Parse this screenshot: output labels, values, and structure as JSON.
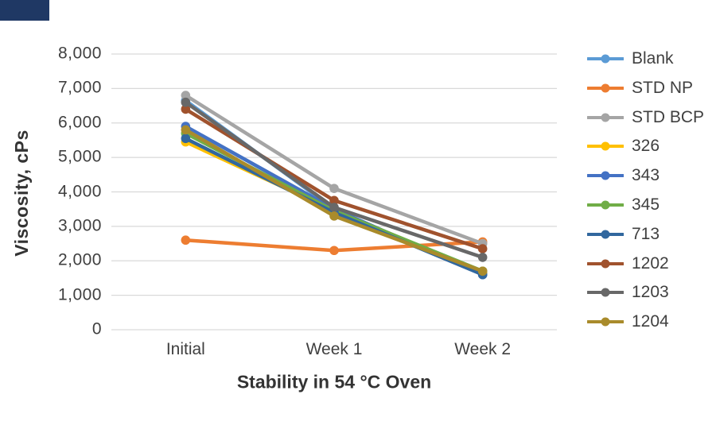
{
  "figure": {
    "background": "#FFFFFF",
    "corner_decoration_color": "#1F3864"
  },
  "chart_data": {
    "type": "line",
    "title": "",
    "xlabel": "Stability in 54 °C Oven",
    "ylabel": "Viscosity, cPs",
    "categories": [
      "Initial",
      "Week 1",
      "Week 2"
    ],
    "ylim": [
      0,
      8000
    ],
    "ytick_step": 1000,
    "ytick_labels": [
      "0",
      "1,000",
      "2,000",
      "3,000",
      "4,000",
      "5,000",
      "6,000",
      "7,000",
      "8,000"
    ],
    "grid": true,
    "gridline_color": "#D9D9D9",
    "axis_text_color": "#404040",
    "legend_position": "right",
    "marker": "circle",
    "series": [
      {
        "name": "Blank",
        "color": "#5B9BD5",
        "values": [
          6650,
          3500,
          1600
        ]
      },
      {
        "name": "STD NP",
        "color": "#ED7D31",
        "values": [
          2600,
          2300,
          2550
        ]
      },
      {
        "name": "STD BCP",
        "color": "#A5A5A5",
        "values": [
          6800,
          4100,
          2500
        ]
      },
      {
        "name": "326",
        "color": "#FFC000",
        "values": [
          5450,
          3450,
          1650
        ]
      },
      {
        "name": "343",
        "color": "#4472C4",
        "values": [
          5900,
          3500,
          1600
        ]
      },
      {
        "name": "345",
        "color": "#70AD47",
        "values": [
          5700,
          3450,
          1700
        ]
      },
      {
        "name": "713",
        "color": "#31679E",
        "values": [
          5550,
          3400,
          1600
        ]
      },
      {
        "name": "1202",
        "color": "#A0522D",
        "values": [
          6400,
          3750,
          2350
        ]
      },
      {
        "name": "1203",
        "color": "#686868",
        "values": [
          6600,
          3550,
          2100
        ]
      },
      {
        "name": "1204",
        "color": "#A98B2B",
        "values": [
          5800,
          3300,
          1700
        ]
      }
    ]
  }
}
